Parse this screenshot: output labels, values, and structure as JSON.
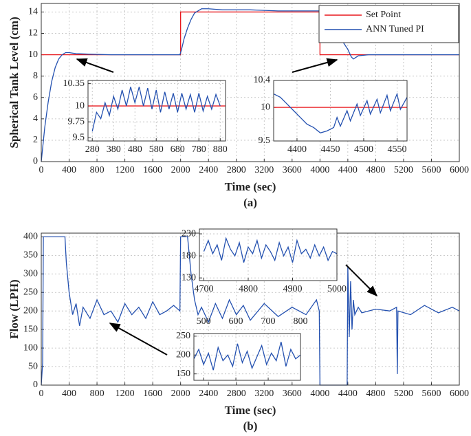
{
  "chart_data": [
    {
      "type": "line",
      "ylabel": "Spherical Tank Level (cm)",
      "xlabel": "Time (sec)",
      "caption": "(a)",
      "xlim": [
        0,
        6000
      ],
      "ylim": [
        0,
        14.8
      ],
      "xticks": [
        0,
        400,
        800,
        1200,
        1600,
        2000,
        2400,
        2800,
        3200,
        3600,
        4000,
        4400,
        4800,
        5200,
        5600,
        6000
      ],
      "yticks": [
        0,
        2,
        4,
        6,
        8,
        10,
        12,
        14
      ],
      "grid": true,
      "legend": "upper right",
      "series": [
        {
          "name": "Set Point",
          "color": "#e8161b",
          "x": [
            0,
            2000,
            2000,
            4000,
            4000,
            6000
          ],
          "values": [
            10,
            10,
            14,
            14,
            10,
            10
          ]
        },
        {
          "name": "ANN Tuned PI",
          "color": "#2451b0",
          "x": [
            0,
            50,
            100,
            150,
            200,
            250,
            300,
            350,
            400,
            500,
            700,
            1000,
            1300,
            1600,
            1990,
            2010,
            2050,
            2100,
            2150,
            2200,
            2300,
            2400,
            2600,
            3000,
            3400,
            3800,
            4000,
            4100,
            4200,
            4300,
            4400,
            4450,
            4480,
            4550,
            4700,
            5000,
            5500,
            6000
          ],
          "values": [
            0,
            3.2,
            5.6,
            7.5,
            8.8,
            9.6,
            10,
            10.2,
            10.2,
            10.1,
            10.05,
            10,
            10,
            10,
            10,
            10.4,
            11.5,
            12.5,
            13.3,
            13.9,
            14.3,
            14.3,
            14.2,
            14.2,
            14.1,
            14.1,
            14.1,
            13.6,
            12.6,
            11.5,
            10.5,
            9.8,
            9.6,
            9.9,
            10,
            10,
            10,
            10
          ]
        }
      ]
    },
    {
      "type": "line",
      "xlim": [
        260,
        905
      ],
      "ylim": [
        9.45,
        10.4
      ],
      "xticks": [
        280,
        380,
        480,
        580,
        680,
        780,
        880
      ],
      "yticks": [
        9.5,
        9.75,
        10,
        10.35
      ],
      "grid": true,
      "series": [
        {
          "color": "#e8161b",
          "x": [
            260,
            905
          ],
          "values": [
            10,
            10
          ]
        },
        {
          "color": "#2451b0",
          "x": [
            280,
            300,
            320,
            340,
            360,
            380,
            400,
            420,
            440,
            460,
            480,
            500,
            520,
            540,
            560,
            580,
            600,
            620,
            640,
            660,
            680,
            700,
            720,
            740,
            760,
            780,
            800,
            820,
            840,
            860,
            880
          ],
          "values": [
            9.6,
            9.9,
            9.8,
            10.05,
            9.85,
            10.15,
            9.95,
            10.25,
            10.0,
            10.3,
            10.05,
            10.3,
            10.0,
            10.28,
            9.95,
            10.25,
            9.9,
            10.22,
            9.95,
            10.2,
            9.9,
            10.2,
            9.95,
            10.18,
            9.9,
            10.2,
            9.92,
            10.15,
            9.95,
            10.18,
            10.0
          ]
        }
      ]
    },
    {
      "type": "line",
      "xlim": [
        4365,
        4565
      ],
      "ylim": [
        9.5,
        10.4
      ],
      "xticks": [
        4400,
        4450,
        4500,
        4550
      ],
      "yticks": [
        9.5,
        10,
        10.4
      ],
      "grid": true,
      "series": [
        {
          "color": "#e8161b",
          "x": [
            4365,
            4565
          ],
          "values": [
            10,
            10
          ]
        },
        {
          "color": "#2451b0",
          "x": [
            4365,
            4375,
            4385,
            4395,
            4405,
            4415,
            4425,
            4435,
            4445,
            4455,
            4460,
            4465,
            4475,
            4480,
            4490,
            4495,
            4505,
            4510,
            4520,
            4525,
            4535,
            4540,
            4550,
            4555,
            4565
          ],
          "values": [
            10.2,
            10.15,
            10.05,
            9.95,
            9.85,
            9.75,
            9.7,
            9.62,
            9.65,
            9.7,
            9.85,
            9.72,
            9.95,
            9.8,
            10.05,
            9.88,
            10.1,
            9.9,
            10.12,
            9.92,
            10.18,
            9.95,
            10.2,
            9.97,
            10.15
          ]
        }
      ]
    },
    {
      "type": "line",
      "ylabel": "Flow (LPH)",
      "xlabel": "Time (sec)",
      "caption": "(b)",
      "xlim": [
        0,
        6000
      ],
      "ylim": [
        0,
        410
      ],
      "xticks": [
        0,
        400,
        800,
        1200,
        1600,
        2000,
        2400,
        2800,
        3200,
        3600,
        4000,
        4400,
        4800,
        5200,
        5600,
        6000
      ],
      "yticks": [
        0,
        50,
        100,
        150,
        200,
        250,
        300,
        350,
        400
      ],
      "grid": true,
      "series": [
        {
          "color": "#2451b0",
          "x": [
            0,
            20,
            30,
            340,
            360,
            400,
            450,
            500,
            550,
            600,
            700,
            800,
            900,
            1000,
            1100,
            1200,
            1300,
            1400,
            1500,
            1600,
            1700,
            1800,
            1900,
            1990,
            2000,
            2010,
            2100,
            2150,
            2200,
            2250,
            2300,
            2400,
            2500,
            2600,
            2700,
            2800,
            2900,
            3000,
            3200,
            3400,
            3600,
            3800,
            3950,
            3990,
            4000,
            4390,
            4400,
            4420,
            4440,
            4460,
            4480,
            4500,
            4550,
            4600,
            4800,
            5000,
            5100,
            5110,
            5120,
            5300,
            5500,
            5700,
            5900,
            6000
          ],
          "values": [
            0,
            60,
            400,
            400,
            330,
            250,
            190,
            220,
            160,
            210,
            180,
            230,
            190,
            200,
            170,
            220,
            190,
            210,
            180,
            225,
            190,
            200,
            215,
            200,
            400,
            400,
            400,
            300,
            230,
            190,
            210,
            170,
            220,
            180,
            230,
            190,
            215,
            175,
            220,
            185,
            210,
            190,
            230,
            200,
            0,
            0,
            320,
            130,
            280,
            150,
            230,
            190,
            210,
            195,
            205,
            200,
            210,
            30,
            200,
            190,
            215,
            195,
            210,
            200
          ]
        }
      ]
    },
    {
      "type": "line",
      "xlim": [
        4690,
        5000
      ],
      "ylim": [
        124,
        241
      ],
      "xticks": [
        4700,
        4800,
        4900,
        5000
      ],
      "yticks": [
        130,
        180,
        230
      ],
      "grid": true,
      "series": [
        {
          "color": "#2451b0",
          "x": [
            4700,
            4710,
            4720,
            4730,
            4740,
            4750,
            4760,
            4770,
            4780,
            4790,
            4800,
            4810,
            4820,
            4830,
            4840,
            4850,
            4860,
            4870,
            4880,
            4890,
            4900,
            4910,
            4920,
            4930,
            4940,
            4950,
            4960,
            4970,
            4980,
            4990,
            5000
          ],
          "values": [
            190,
            215,
            185,
            205,
            170,
            220,
            195,
            180,
            210,
            165,
            200,
            185,
            215,
            175,
            205,
            190,
            170,
            210,
            180,
            200,
            165,
            215,
            185,
            195,
            175,
            205,
            180,
            200,
            170,
            190,
            185
          ]
        }
      ]
    },
    {
      "type": "line",
      "xlim": [
        470,
        800
      ],
      "ylim": [
        133,
        257
      ],
      "xticks": [
        500,
        600,
        700,
        800
      ],
      "yticks": [
        150,
        200,
        250
      ],
      "grid": true,
      "series": [
        {
          "color": "#2451b0",
          "x": [
            470,
            485,
            500,
            515,
            530,
            545,
            560,
            575,
            590,
            605,
            620,
            635,
            650,
            665,
            680,
            695,
            710,
            725,
            740,
            755,
            770,
            785,
            800
          ],
          "values": [
            190,
            215,
            175,
            205,
            160,
            220,
            185,
            200,
            170,
            230,
            180,
            210,
            165,
            195,
            225,
            175,
            205,
            185,
            235,
            170,
            215,
            190,
            200
          ]
        }
      ]
    }
  ]
}
